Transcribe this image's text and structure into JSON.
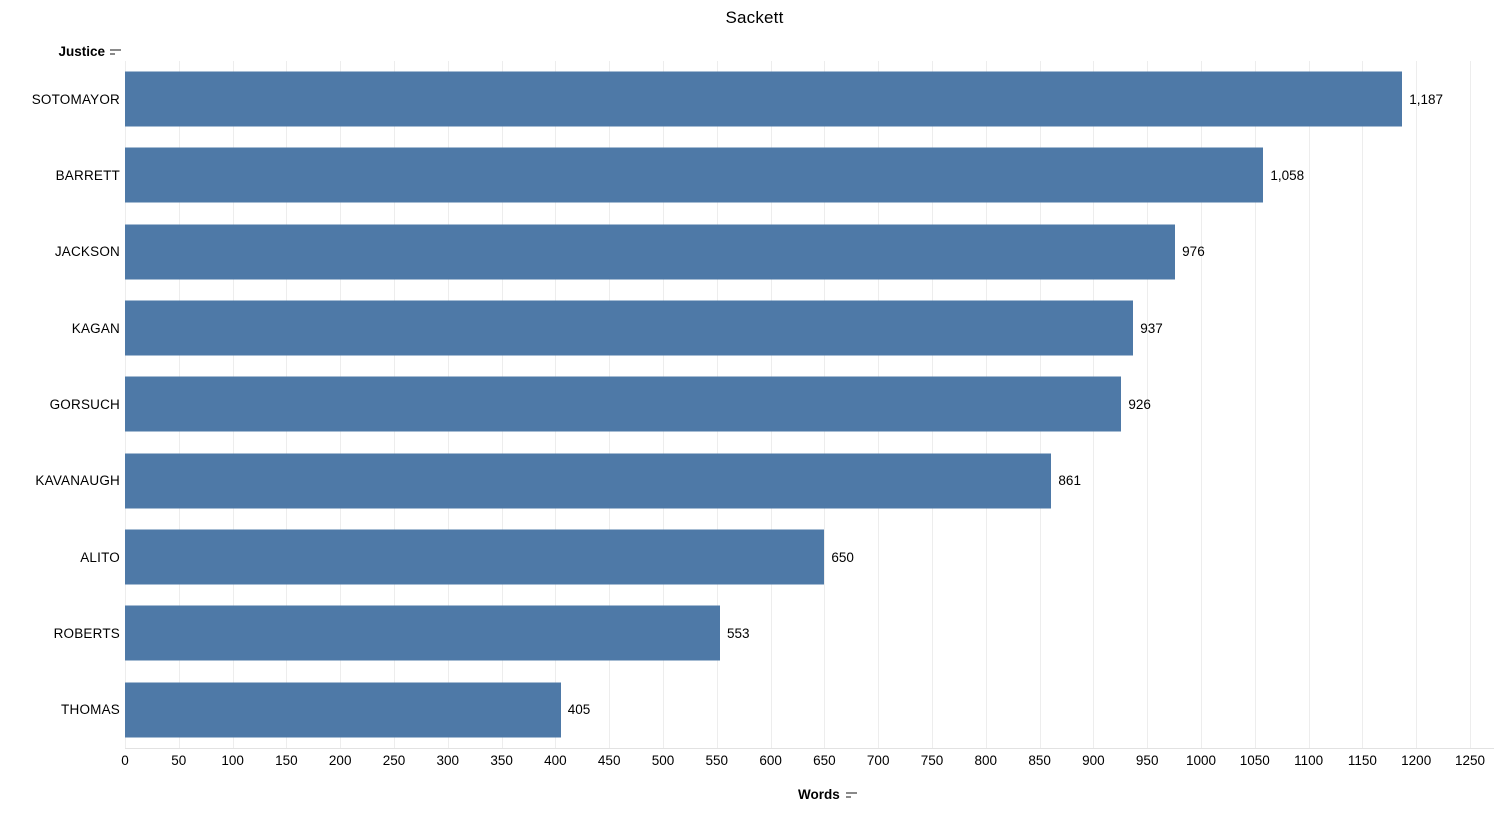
{
  "title": "Sackett",
  "row_axis_header": {
    "label": "Justice"
  },
  "x_axis": {
    "label": "Words"
  },
  "icons": {
    "row_sort": "sort-descending-icon",
    "x_sort": "sort-descending-icon"
  },
  "colors": {
    "bar": "#4e79a7",
    "gridline": "#ededed",
    "axis_line": "#e2e2e2",
    "text": "#000000",
    "sort_icon": "#8a8a8a"
  },
  "chart_data": {
    "type": "bar",
    "orientation": "horizontal",
    "title": "Sackett",
    "xlabel": "Words",
    "ylabel": "Justice",
    "categories": [
      "SOTOMAYOR",
      "BARRETT",
      "JACKSON",
      "KAGAN",
      "GORSUCH",
      "KAVANAUGH",
      "ALITO",
      "ROBERTS",
      "THOMAS"
    ],
    "values": [
      1187,
      1058,
      976,
      937,
      926,
      861,
      650,
      553,
      405
    ],
    "value_labels": [
      "1,187",
      "1,058",
      "976",
      "937",
      "926",
      "861",
      "650",
      "553",
      "405"
    ],
    "xlim": [
      0,
      1250
    ],
    "x_ticks": [
      0,
      50,
      100,
      150,
      200,
      250,
      300,
      350,
      400,
      450,
      500,
      550,
      600,
      650,
      700,
      750,
      800,
      850,
      900,
      950,
      1000,
      1050,
      1100,
      1150,
      1200,
      1250
    ],
    "grid": true,
    "legend": "none",
    "sort": "descending",
    "bar_color": "#4e79a7"
  }
}
